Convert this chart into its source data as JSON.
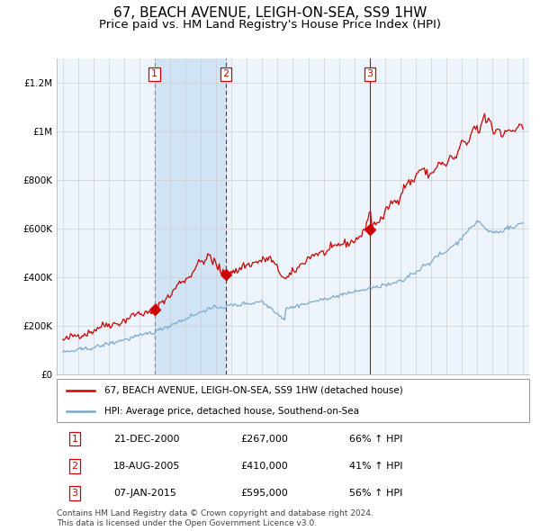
{
  "title": "67, BEACH AVENUE, LEIGH-ON-SEA, SS9 1HW",
  "subtitle": "Price paid vs. HM Land Registry's House Price Index (HPI)",
  "title_fontsize": 11,
  "subtitle_fontsize": 9.5,
  "xlim": [
    1994.6,
    2025.4
  ],
  "ylim": [
    0,
    1300000
  ],
  "yticks": [
    0,
    200000,
    400000,
    600000,
    800000,
    1000000,
    1200000
  ],
  "ytick_labels": [
    "£0",
    "£200K",
    "£400K",
    "£600K",
    "£800K",
    "£1M",
    "£1.2M"
  ],
  "xticks": [
    1995,
    1996,
    1997,
    1998,
    1999,
    2000,
    2001,
    2002,
    2003,
    2004,
    2005,
    2006,
    2007,
    2008,
    2009,
    2010,
    2011,
    2012,
    2013,
    2014,
    2015,
    2016,
    2017,
    2018,
    2019,
    2020,
    2021,
    2022,
    2023,
    2024,
    2025
  ],
  "plot_bg": "#eef4fb",
  "red_line_color": "#cc0000",
  "blue_line_color": "#7aabcf",
  "shade_color": "#d0e4f5",
  "sale1_year": 2000.97,
  "sale1_price": 267000,
  "sale2_year": 2005.63,
  "sale2_price": 410000,
  "sale3_year": 2015.02,
  "sale3_price": 595000,
  "legend_red": "67, BEACH AVENUE, LEIGH-ON-SEA, SS9 1HW (detached house)",
  "legend_blue": "HPI: Average price, detached house, Southend-on-Sea",
  "table_rows": [
    [
      "1",
      "21-DEC-2000",
      "£267,000",
      "66% ↑ HPI"
    ],
    [
      "2",
      "18-AUG-2005",
      "£410,000",
      "41% ↑ HPI"
    ],
    [
      "3",
      "07-JAN-2015",
      "£595,000",
      "56% ↑ HPI"
    ]
  ],
  "footnote": "Contains HM Land Registry data © Crown copyright and database right 2024.\nThis data is licensed under the Open Government Licence v3.0.",
  "footnote_fontsize": 6.5
}
